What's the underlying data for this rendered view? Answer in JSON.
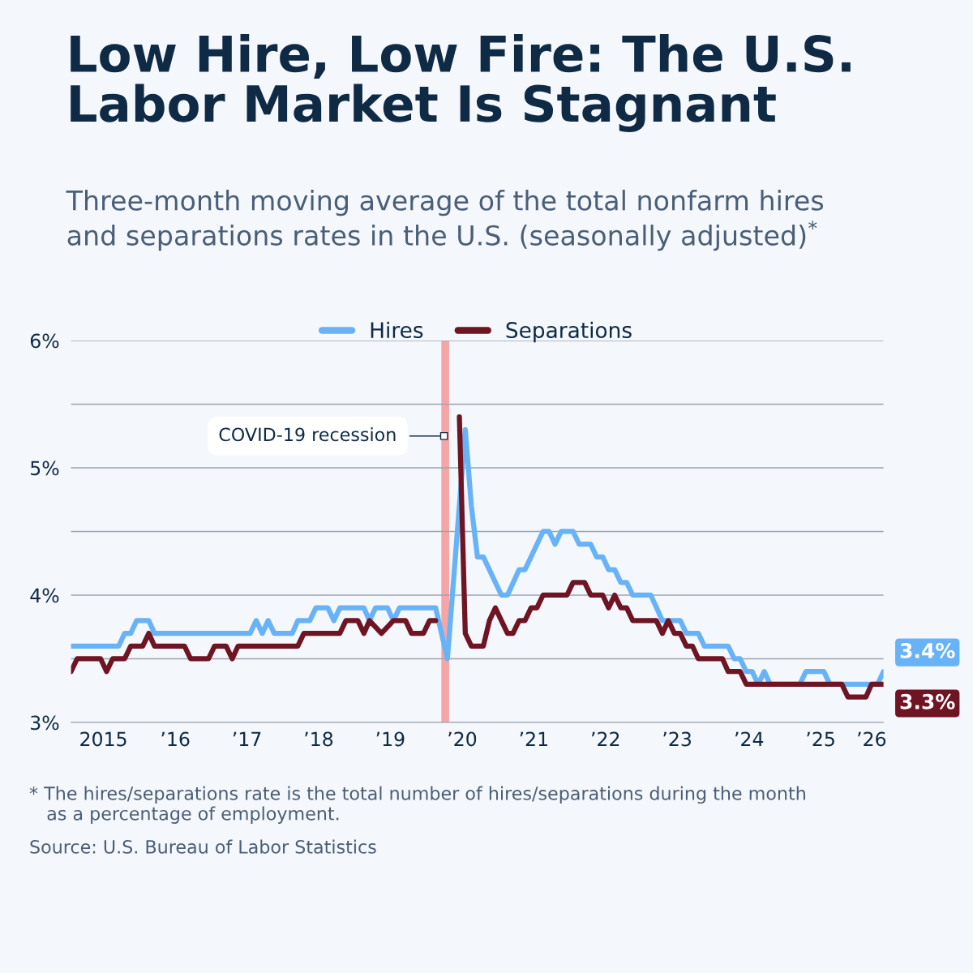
{
  "chart_data": {
    "type": "line",
    "title": "Low Hire, Low Fire: The U.S.\nLabor Market Is Stagnant",
    "subtitle": "Three-month moving average of the total nonfarm hires\nand separations rates in the U.S. (seasonally adjusted)$^{*}$",
    "series": [
      {
        "name": "Hires",
        "color": "#68b3f8",
        "x": [
          "2015-01",
          "2015-09",
          "2015-10",
          "2015-11",
          "2015-12",
          "2016-02",
          "2016-03",
          "2017-07",
          "2017-08",
          "2017-09",
          "2017-10",
          "2017-11",
          "2018-02",
          "2018-03",
          "2018-05",
          "2018-06",
          "2018-08",
          "2018-09",
          "2018-10",
          "2019-02",
          "2019-03",
          "2019-04",
          "2019-06",
          "2019-07",
          "2019-08",
          "2020-02",
          "2020-04",
          "2020-07",
          "2020-08",
          "2020-09",
          "2020-10",
          "2021-01",
          "2021-02",
          "2021-04",
          "2021-05",
          "2021-08",
          "2021-09",
          "2021-10",
          "2021-11",
          "2022-01",
          "2022-02",
          "2022-04",
          "2022-05",
          "2022-06",
          "2022-07",
          "2022-08",
          "2022-09",
          "2022-10",
          "2022-11",
          "2023-02",
          "2023-04",
          "2023-07",
          "2023-08",
          "2023-10",
          "2023-11",
          "2024-03",
          "2024-04",
          "2024-05",
          "2024-06",
          "2024-07",
          "2024-08",
          "2024-09",
          "2024-10",
          "2025-03",
          "2025-04",
          "2025-07",
          "2025-08",
          "2026-04",
          "2026-05"
        ],
        "values": [
          3.6,
          3.6,
          3.7,
          3.7,
          3.8,
          3.8,
          3.7,
          3.7,
          3.8,
          3.7,
          3.8,
          3.7,
          3.7,
          3.8,
          3.8,
          3.9,
          3.9,
          3.8,
          3.9,
          3.9,
          3.8,
          3.9,
          3.9,
          3.8,
          3.9,
          3.9,
          3.5,
          5.3,
          4.7,
          4.3,
          4.3,
          4.0,
          4.0,
          4.2,
          4.2,
          4.5,
          4.5,
          4.4,
          4.5,
          4.5,
          4.4,
          4.4,
          4.3,
          4.3,
          4.2,
          4.2,
          4.1,
          4.1,
          4.0,
          4.0,
          3.8,
          3.8,
          3.7,
          3.7,
          3.6,
          3.6,
          3.5,
          3.5,
          3.4,
          3.4,
          3.3,
          3.4,
          3.3,
          3.3,
          3.4,
          3.4,
          3.3,
          3.3,
          3.4
        ],
        "value_labels": [
          null,
          null,
          null,
          null,
          null,
          null,
          null,
          null,
          null,
          null,
          null,
          null,
          null,
          null,
          null,
          null,
          null,
          null,
          null,
          null,
          null,
          null,
          null,
          null,
          null,
          null,
          null,
          null,
          null,
          null,
          null,
          null,
          null,
          null,
          null,
          null,
          null,
          null,
          null,
          null,
          null,
          null,
          null,
          null,
          null,
          null,
          null,
          null,
          null,
          null,
          null,
          null,
          null,
          null,
          null,
          null,
          null,
          null,
          null,
          null,
          null,
          null,
          null,
          null,
          null,
          null,
          null,
          null,
          "3.4%"
        ]
      },
      {
        "name": "Separations",
        "color": "#6e1423",
        "x": [
          "2015-01",
          "2015-02",
          "2015-06",
          "2015-07",
          "2015-08",
          "2015-10",
          "2015-11",
          "2016-01",
          "2016-02",
          "2016-03",
          "2016-08",
          "2016-09",
          "2016-12",
          "2017-01",
          "2017-03",
          "2017-04",
          "2017-05",
          "2018-03",
          "2018-04",
          "2018-10",
          "2018-11",
          "2019-01",
          "2019-02",
          "2019-03",
          "2019-05",
          "2019-07",
          "2019-09",
          "2019-10",
          "2019-12",
          "2020-01",
          "2020-02",
          "2020-04",
          "2020-06",
          "2020-07",
          "2020-08",
          "2020-10",
          "2020-11",
          "2020-12",
          "2021-01",
          "2021-02",
          "2021-03",
          "2021-04",
          "2021-05",
          "2021-06",
          "2021-07",
          "2021-08",
          "2021-12",
          "2022-01",
          "2022-03",
          "2022-04",
          "2022-06",
          "2022-07",
          "2022-08",
          "2022-09",
          "2022-10",
          "2022-11",
          "2023-03",
          "2023-04",
          "2023-05",
          "2023-06",
          "2023-07",
          "2023-08",
          "2023-09",
          "2023-10",
          "2024-02",
          "2024-03",
          "2024-05",
          "2024-06",
          "2025-10",
          "2025-11",
          "2026-02",
          "2026-03",
          "2026-05"
        ],
        "values": [
          3.4,
          3.5,
          3.5,
          3.4,
          3.5,
          3.5,
          3.6,
          3.6,
          3.7,
          3.6,
          3.6,
          3.5,
          3.5,
          3.6,
          3.6,
          3.5,
          3.6,
          3.6,
          3.7,
          3.7,
          3.8,
          3.8,
          3.7,
          3.8,
          3.7,
          3.8,
          3.8,
          3.7,
          3.7,
          3.8,
          3.8,
          null,
          5.4,
          3.7,
          3.6,
          3.6,
          3.8,
          3.9,
          3.8,
          3.7,
          3.7,
          3.8,
          3.8,
          3.9,
          3.9,
          4.0,
          4.0,
          4.1,
          4.1,
          4.0,
          4.0,
          3.9,
          4.0,
          3.9,
          3.9,
          3.8,
          3.8,
          3.7,
          3.8,
          3.7,
          3.7,
          3.6,
          3.6,
          3.5,
          3.5,
          3.4,
          3.4,
          3.3,
          3.3,
          3.2,
          3.2,
          3.3,
          3.3
        ],
        "value_labels": [
          null,
          null,
          null,
          null,
          null,
          null,
          null,
          null,
          null,
          null,
          null,
          null,
          null,
          null,
          null,
          null,
          null,
          null,
          null,
          null,
          null,
          null,
          null,
          null,
          null,
          null,
          null,
          null,
          null,
          null,
          null,
          null,
          null,
          null,
          null,
          null,
          null,
          null,
          null,
          null,
          null,
          null,
          null,
          null,
          null,
          null,
          null,
          null,
          null,
          null,
          null,
          null,
          null,
          null,
          null,
          null,
          null,
          null,
          null,
          null,
          null,
          null,
          null,
          null,
          null,
          null,
          null,
          null,
          null,
          null,
          null,
          null,
          "3.3%"
        ]
      }
    ],
    "xlim": [
      "2015-01",
      "2026-05"
    ],
    "xticks": [
      {
        "value": "2015-06-15",
        "label": "2015"
      },
      {
        "value": "2016-06-15",
        "label": "’16"
      },
      {
        "value": "2017-06-15",
        "label": "’17"
      },
      {
        "value": "2018-06-15",
        "label": "’18"
      },
      {
        "value": "2019-06-15",
        "label": "’19"
      },
      {
        "value": "2020-06-15",
        "label": "’20"
      },
      {
        "value": "2021-06-15",
        "label": "’21"
      },
      {
        "value": "2022-06-15",
        "label": "’22"
      },
      {
        "value": "2023-06-15",
        "label": "’23"
      },
      {
        "value": "2024-06-15",
        "label": "’24"
      },
      {
        "value": "2025-06-15",
        "label": "’25"
      },
      {
        "value": "2026-03",
        "label": "’26"
      }
    ],
    "ylim": [
      3,
      6
    ],
    "yticks": [
      {
        "value": 3,
        "label": "3%"
      },
      {
        "value": 3.5,
        "label": null
      },
      {
        "value": 4,
        "label": "4%"
      },
      {
        "value": 4.5,
        "label": null
      },
      {
        "value": 5,
        "label": "5%"
      },
      {
        "value": 5.5,
        "label": null
      },
      {
        "value": 6,
        "label": "6%"
      }
    ],
    "bands": [
      {
        "axis": "x",
        "from": "2020-03",
        "to": "2020-04-10",
        "color": "#f4a6a6"
      }
    ],
    "annotations": [
      {
        "text": "COVID-19 recession",
        "x": "2020-03-15",
        "y": 5.25
      },
      "* The hires/separations rate is the total number of hires/separations during the month\n   as a percentage of employment.",
      "Source: U.S. Bureau of Labor Statistics"
    ],
    "grid": "y",
    "legend": "top",
    "line_style": "solid",
    "marker": "none"
  }
}
